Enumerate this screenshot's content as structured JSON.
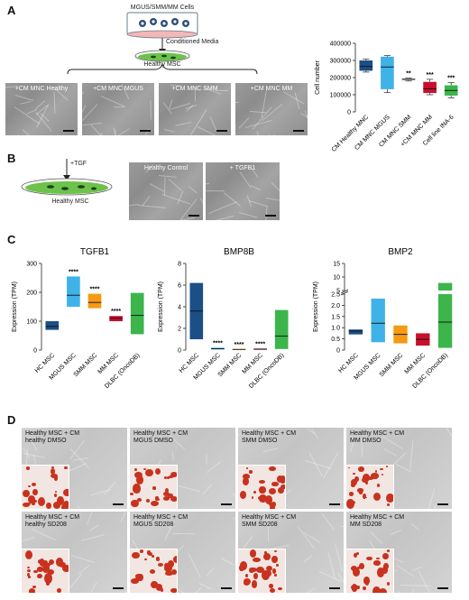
{
  "panels": {
    "A": {
      "letter": "A",
      "cells_label": "MGUS/SMM/MM Cells",
      "conditioned_label": "Conditioned Media",
      "msc_label": "Healthy MSC",
      "micrographs": [
        "+CM MNC Healthy",
        "+CM MNC MGUS",
        "+CM MNC SMM",
        "+CM MNC MM"
      ]
    },
    "B": {
      "letter": "B",
      "tgf_label": "+TGF",
      "msc_label": "Healthy MSC",
      "micrographs": [
        "Healthy Control",
        "+ TGFB1"
      ]
    },
    "C": {
      "letter": "C"
    },
    "D": {
      "letter": "D",
      "row1": [
        "Healthy MSC + CM\nhealthy DMSO",
        "Healthy MSC + CM\nMGUS DMSO",
        "Healthy MSC + CM\nSMM DMSO",
        "Healthy MSC + CM\nMM DMSO"
      ],
      "row2": [
        "Healthy MSC + CM\nhealthy SD208",
        "Healthy MSC + CM\nMGUS SD208",
        "Healthy MSC + CM\nSMM SD208",
        "Healthy MSC + CM\nMM SD208"
      ]
    }
  },
  "colors": {
    "navy": "#1b4f86",
    "sky": "#3fb3e8",
    "orange": "#f59a12",
    "crimson": "#c8102e",
    "green": "#3cb54a",
    "grey": "#c9c9c9"
  },
  "chart_data": [
    {
      "type": "box",
      "id": "cellnumber",
      "ylabel": "Cell number",
      "ylim": [
        0,
        400000
      ],
      "yticks": [
        0,
        100000,
        200000,
        300000,
        400000
      ],
      "ytick_labels": [
        "0",
        "100000",
        "200000",
        "300000",
        "400000"
      ],
      "categories": [
        "CM Healthy MNC",
        "CM MNC MGUS",
        "CM MNC SMM",
        "+CM MNC MM",
        "Cell line INA-6"
      ],
      "colors": [
        "#1b4f86",
        "#3fb3e8",
        "#c9c9c9",
        "#c8102e",
        "#3cb54a"
      ],
      "boxes": [
        {
          "min": 232000,
          "q1": 240000,
          "median": 265000,
          "q3": 300000,
          "max": 308000
        },
        {
          "min": 112000,
          "q1": 132000,
          "median": 262000,
          "q3": 322000,
          "max": 328000
        },
        {
          "min": 180000,
          "q1": 184000,
          "median": 190000,
          "q3": 196000,
          "max": 198000
        },
        {
          "min": 100000,
          "q1": 110000,
          "median": 135000,
          "q3": 175000,
          "max": 190000
        },
        {
          "min": 82000,
          "q1": 95000,
          "median": 125000,
          "q3": 155000,
          "max": 170000
        }
      ],
      "annotations": [
        "",
        "",
        "**",
        "***",
        "***"
      ]
    },
    {
      "type": "box",
      "id": "tgfb1",
      "title": "TGFB1",
      "ylabel": "Expression (TPM)",
      "ylim": [
        0,
        300
      ],
      "yticks": [
        0,
        100,
        200,
        300
      ],
      "ytick_labels": [
        "0",
        "100",
        "200",
        "300"
      ],
      "categories": [
        "HC MSC",
        "MGUS MSC",
        "SMM MSC",
        "MM MSC",
        "DLBC (OncoDB)"
      ],
      "colors": [
        "#1b4f86",
        "#3fb3e8",
        "#f59a12",
        "#c8102e",
        "#3cb54a"
      ],
      "boxes": [
        {
          "q1": 70,
          "median": 82,
          "q3": 100
        },
        {
          "q1": 150,
          "median": 190,
          "q3": 255
        },
        {
          "q1": 145,
          "median": 165,
          "q3": 195
        },
        {
          "q1": 100,
          "median": 110,
          "q3": 118
        },
        {
          "q1": 55,
          "median": 120,
          "q3": 198
        }
      ],
      "annotations": [
        "",
        "****",
        "****",
        "****",
        ""
      ]
    },
    {
      "type": "box",
      "id": "bmp8b",
      "title": "BMP8B",
      "ylabel": "Expression (TPM)",
      "ylim": [
        0,
        8
      ],
      "yticks": [
        0,
        2,
        4,
        6,
        8
      ],
      "ytick_labels": [
        "0",
        "2",
        "4",
        "6",
        "8"
      ],
      "categories": [
        "HC MSC",
        "MGUS MSC",
        "SMM MSC",
        "MM MSC",
        "DLBC (OncoDB)"
      ],
      "colors": [
        "#1b4f86",
        "#3fb3e8",
        "#f59a12",
        "#c8102e",
        "#3cb54a"
      ],
      "boxes": [
        {
          "q1": 1.0,
          "median": 3.6,
          "q3": 6.2
        },
        {
          "q1": 0.05,
          "median": 0.12,
          "q3": 0.22
        },
        {
          "q1": 0.03,
          "median": 0.06,
          "q3": 0.1
        },
        {
          "q1": 0.03,
          "median": 0.08,
          "q3": 0.14
        },
        {
          "q1": 0.1,
          "median": 1.3,
          "q3": 3.7
        }
      ],
      "annotations": [
        "",
        "****",
        "****",
        "****",
        ""
      ]
    },
    {
      "type": "box",
      "id": "bmp2",
      "title": "BMP2",
      "ylabel": "Expression (TPM)",
      "broken_axis": true,
      "lower_range": [
        0,
        2.5
      ],
      "upper_range": [
        5,
        15
      ],
      "lower_ticks": [
        0,
        0.5,
        1.0,
        1.5,
        2.0,
        2.5
      ],
      "lower_tick_labels": [
        "0",
        "0.5",
        "1.0",
        "1.5",
        "2.0",
        "2.5"
      ],
      "upper_ticks": [
        5,
        10,
        15
      ],
      "upper_tick_labels": [
        "5",
        "10",
        "15"
      ],
      "categories": [
        "HC MSC",
        "MGUS MSC",
        "SMM MSC",
        "MM MSC",
        "DLBC (OncoDB)"
      ],
      "colors": [
        "#1b4f86",
        "#3fb3e8",
        "#f59a12",
        "#c8102e",
        "#3cb54a"
      ],
      "boxes": [
        {
          "q1": 0.7,
          "median": 0.85,
          "q3": 0.92
        },
        {
          "q1": 0.35,
          "median": 1.2,
          "q3": 2.3
        },
        {
          "q1": 0.3,
          "median": 0.7,
          "q3": 1.1
        },
        {
          "q1": 0.2,
          "median": 0.48,
          "q3": 0.75
        },
        {
          "q1": 0.1,
          "median": 1.25,
          "q3": 7.8
        }
      ],
      "annotations": [
        "",
        "",
        "",
        "",
        ""
      ]
    }
  ]
}
